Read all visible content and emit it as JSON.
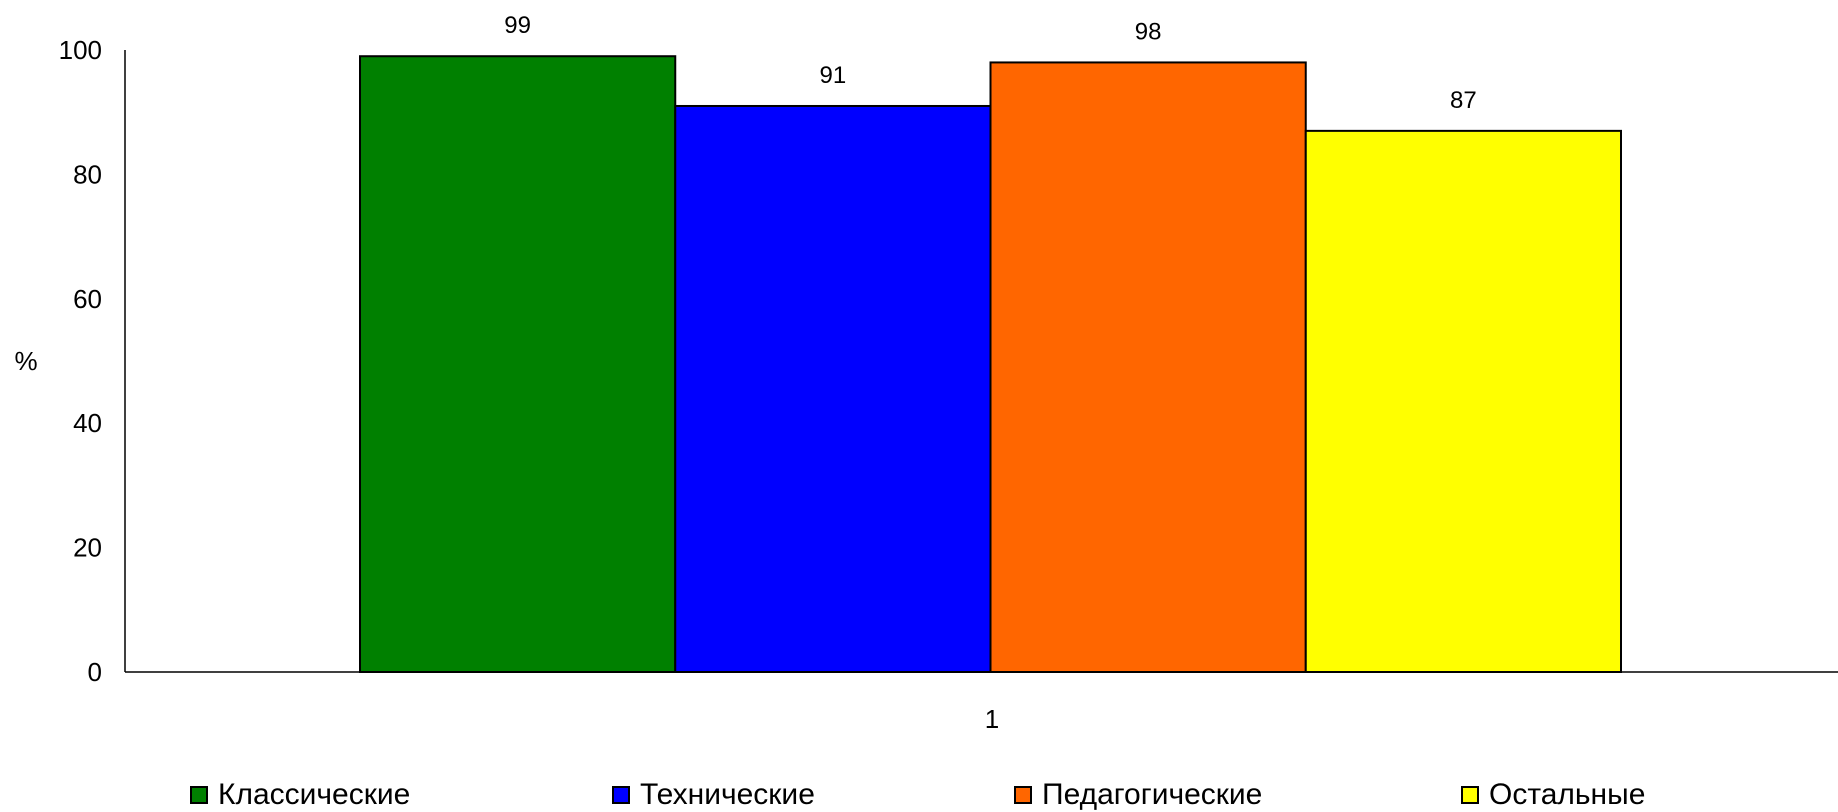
{
  "chart_data": {
    "type": "bar",
    "categories": [
      "1"
    ],
    "series": [
      {
        "name": "Классические",
        "values": [
          99
        ],
        "color": "#008000"
      },
      {
        "name": "Технические",
        "values": [
          91
        ],
        "color": "#0000FF"
      },
      {
        "name": "Педагогические",
        "values": [
          98
        ],
        "color": "#FF6600"
      },
      {
        "name": "Остальные",
        "values": [
          87
        ],
        "color": "#FFFF00"
      }
    ],
    "data_labels": [
      "99",
      "91",
      "98",
      "87"
    ],
    "title": "",
    "xlabel": "",
    "ylabel": "%",
    "ylim": [
      0,
      100
    ],
    "yticks": [
      "0",
      "20",
      "40",
      "60",
      "80",
      "100"
    ],
    "grid": false,
    "legend_position": "bottom"
  }
}
